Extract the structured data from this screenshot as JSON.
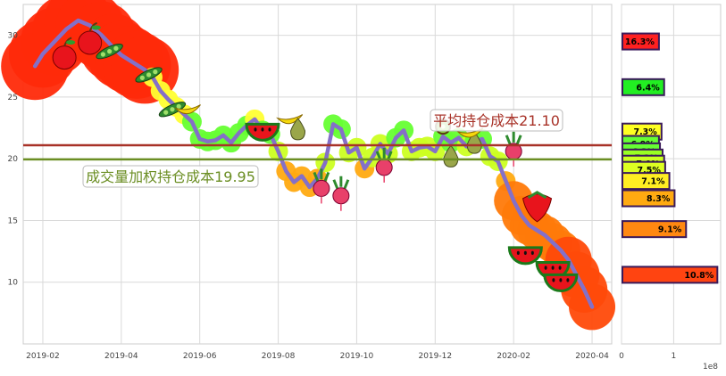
{
  "chart_data": [
    {
      "type": "line",
      "title": "",
      "xlabel": "",
      "ylabel": "",
      "x_tick_labels": [
        "2019-02",
        "2019-04",
        "2019-06",
        "2019-08",
        "2019-10",
        "2019-12",
        "2020-02",
        "2020-04"
      ],
      "y_tick_labels": [
        "10",
        "15",
        "20",
        "25",
        "30"
      ],
      "ylim": [
        5,
        32.5
      ],
      "grid": true,
      "x_range_months": [
        0.5,
        15.5
      ],
      "series": [
        {
          "x_months": [
            0.8,
            1.0,
            1.3,
            1.6,
            1.9,
            2.2,
            2.5,
            2.8,
            3.0,
            3.2,
            3.4,
            3.6,
            3.8,
            4.0,
            4.2,
            4.4,
            4.6,
            4.8,
            5.0,
            5.2,
            5.4,
            5.6,
            5.8,
            6.0,
            6.2,
            6.4,
            6.6,
            6.8,
            7.0,
            7.2,
            7.4,
            7.6,
            7.8,
            8.0,
            8.2,
            8.4,
            8.6,
            8.8,
            9.0,
            9.2,
            9.4,
            9.6,
            9.8,
            10.0,
            10.2,
            10.4,
            10.6,
            10.8,
            11.0,
            11.2,
            11.4,
            11.6,
            11.8,
            12.0,
            12.2,
            12.4,
            12.6,
            12.8,
            13.0,
            13.2,
            13.4,
            13.6,
            13.8,
            14.0,
            14.2,
            14.4,
            14.6,
            14.8,
            15.0
          ],
          "values": [
            27.5,
            28.5,
            29.5,
            30.5,
            31.2,
            30.8,
            30.0,
            29.0,
            28.4,
            28.0,
            27.6,
            27.2,
            26.6,
            25.5,
            24.8,
            24.2,
            23.6,
            23.0,
            21.6,
            21.4,
            21.5,
            21.9,
            21.3,
            22.1,
            22.7,
            23.2,
            22.3,
            22.0,
            20.6,
            19.0,
            18.1,
            18.6,
            17.7,
            18.4,
            19.7,
            22.8,
            22.4,
            20.5,
            20.9,
            19.2,
            20.1,
            21.2,
            20.4,
            21.7,
            22.3,
            20.6,
            20.9,
            21.0,
            20.6,
            21.8,
            21.3,
            21.7,
            21.0,
            21.4,
            21.6,
            20.2,
            19.8,
            18.2,
            16.6,
            15.4,
            14.6,
            14.2,
            13.8,
            13.2,
            12.6,
            11.8,
            10.6,
            9.4,
            8.0
          ]
        }
      ],
      "reference_lines": [
        {
          "label": "平均持仓成本21.10",
          "value": 21.1,
          "color": "#a83228"
        },
        {
          "label": "成交量加权持仓成本19.95",
          "value": 19.95,
          "color": "#6b8e23"
        }
      ],
      "colors": {
        "line": "#8470c8",
        "grid": "#d9d9d9",
        "annotation_avg": "#a83228",
        "annotation_vwap": "#6b8e23"
      }
    },
    {
      "type": "bar",
      "orientation": "horizontal",
      "title": "",
      "xlabel": "",
      "x_tick_labels": [
        "0",
        "1"
      ],
      "x_scale_label": "1e8",
      "ylim": [
        5,
        32.5
      ],
      "xlim": [
        0,
        1.9
      ],
      "bars": [
        {
          "price": 29.5,
          "volume": 0.7,
          "label": "16.3%",
          "color": "#ff2020"
        },
        {
          "price": 25.8,
          "volume": 0.8,
          "label": "6.4%",
          "color": "#22ee22"
        },
        {
          "price": 22.2,
          "volume": 0.75,
          "label": "7.3%",
          "color": "#ffff22"
        },
        {
          "price": 21.2,
          "volume": 0.7,
          "label": "6.9%",
          "color": "#66ff33"
        },
        {
          "price": 20.6,
          "volume": 0.72,
          "label": "6.3%",
          "color": "#66ff33"
        },
        {
          "price": 20.1,
          "volume": 0.77,
          "label": "7.2%",
          "color": "#99ff22"
        },
        {
          "price": 19.6,
          "volume": 0.8,
          "label": "7.0%",
          "color": "#ccff22"
        },
        {
          "price": 19.1,
          "volume": 0.82,
          "label": "7.5%",
          "color": "#ddff22"
        },
        {
          "price": 18.2,
          "volume": 0.9,
          "label": "7.1%",
          "color": "#ffee22"
        },
        {
          "price": 16.8,
          "volume": 1.0,
          "label": "8.3%",
          "color": "#ffaa11"
        },
        {
          "price": 14.3,
          "volume": 1.22,
          "label": "9.1%",
          "color": "#ff8811"
        },
        {
          "price": 10.6,
          "volume": 1.82,
          "label": "10.8%",
          "color": "#ff4411"
        }
      ]
    }
  ]
}
